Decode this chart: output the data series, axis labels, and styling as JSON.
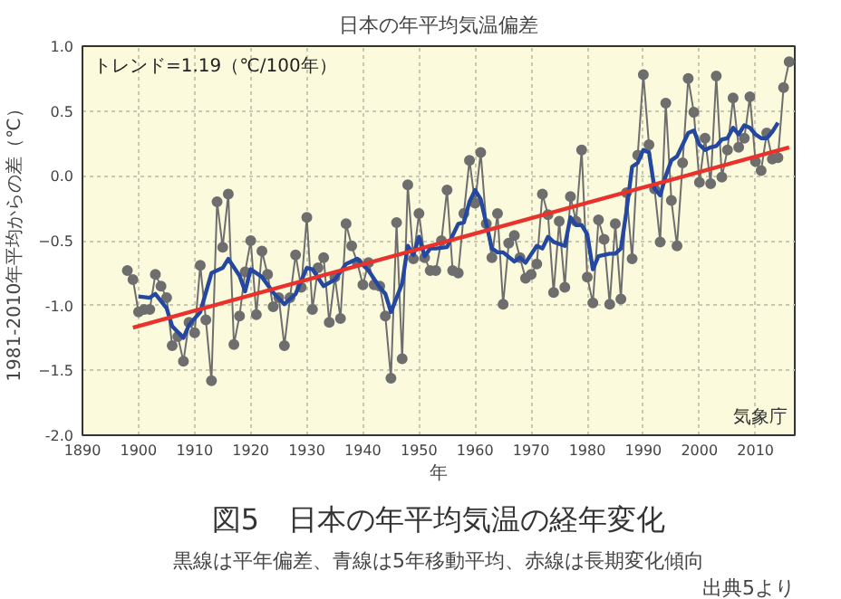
{
  "chart_data": {
    "type": "line",
    "title": "日本の年平均気温偏差",
    "xlabel": "年",
    "ylabel": "1981-2010年平均からの差（℃）",
    "xlim": [
      1890,
      2017
    ],
    "xticks": [
      1890,
      1900,
      1910,
      1920,
      1930,
      1940,
      1950,
      1960,
      1970,
      1980,
      1990,
      2000,
      2010
    ],
    "ylim": [
      -2,
      1
    ],
    "yticks": [
      {
        "value": -2,
        "label": "-2.0"
      },
      -1.5,
      {
        "value": -1,
        "label": "-1.0"
      },
      -0.5,
      {
        "value": 0,
        "label": "0.0"
      },
      0.5,
      {
        "value": 1,
        "label": "1.0"
      }
    ],
    "grid": true,
    "annotations": [
      "トレンド=1.19（℃/100年）",
      "気象庁",
      "図5　日本の年平均気温の経年変化",
      "黒線は平年偏差、青線は5年移動平均、赤線は長期変化傾向",
      "出典5より"
    ],
    "series": [
      {
        "color": "#6e6e6e",
        "marker": "circle",
        "x": [
          1898,
          1899,
          1900,
          1901,
          1902,
          1903,
          1904,
          1905,
          1906,
          1907,
          1908,
          1909,
          1910,
          1911,
          1912,
          1913,
          1914,
          1915,
          1916,
          1917,
          1918,
          1919,
          1920,
          1921,
          1922,
          1923,
          1924,
          1925,
          1926,
          1927,
          1928,
          1929,
          1930,
          1931,
          1932,
          1933,
          1934,
          1935,
          1936,
          1937,
          1938,
          1939,
          1940,
          1941,
          1942,
          1943,
          1944,
          1945,
          1946,
          1947,
          1948,
          1949,
          1950,
          1951,
          1952,
          1953,
          1954,
          1955,
          1956,
          1957,
          1958,
          1959,
          1960,
          1961,
          1962,
          1963,
          1964,
          1965,
          1966,
          1967,
          1968,
          1969,
          1970,
          1971,
          1972,
          1973,
          1974,
          1975,
          1976,
          1977,
          1978,
          1979,
          1980,
          1981,
          1982,
          1983,
          1984,
          1985,
          1986,
          1987,
          1988,
          1989,
          1990,
          1991,
          1992,
          1993,
          1994,
          1995,
          1996,
          1997,
          1998,
          1999,
          2000,
          2001,
          2002,
          2003,
          2004,
          2005,
          2006,
          2007,
          2008,
          2009,
          2010,
          2011,
          2012,
          2013,
          2014,
          2015,
          2016
        ],
        "values": [
          -0.73,
          -0.8,
          -1.05,
          -1.03,
          -1.03,
          -0.76,
          -0.85,
          -0.94,
          -1.31,
          -1.24,
          -1.43,
          -1.13,
          -1.21,
          -0.69,
          -1.11,
          -1.58,
          -0.2,
          -0.55,
          -0.14,
          -1.3,
          -1.08,
          -0.74,
          -0.5,
          -1.07,
          -0.58,
          -0.76,
          -1.01,
          -0.94,
          -1.31,
          -0.94,
          -0.61,
          -0.86,
          -0.32,
          -1.03,
          -0.71,
          -0.63,
          -1.13,
          -0.78,
          -1.1,
          -0.37,
          -0.54,
          -0.67,
          -0.84,
          -0.67,
          -0.84,
          -0.85,
          -1.08,
          -1.56,
          -0.36,
          -1.41,
          -0.07,
          -0.64,
          -0.29,
          -0.63,
          -0.73,
          -0.73,
          -0.5,
          -0.11,
          -0.73,
          -0.75,
          -0.29,
          0.12,
          -0.21,
          0.18,
          -0.37,
          -0.63,
          -0.29,
          -0.99,
          -0.52,
          -0.46,
          -0.63,
          -0.79,
          -0.76,
          -0.68,
          -0.14,
          -0.3,
          -0.9,
          -0.35,
          -0.86,
          -0.16,
          -0.35,
          0.2,
          -0.78,
          -0.98,
          -0.34,
          -0.49,
          -0.99,
          -0.37,
          -0.95,
          -0.13,
          -0.64,
          0.16,
          0.78,
          0.24,
          -0.1,
          -0.51,
          0.56,
          -0.19,
          -0.54,
          0.1,
          0.75,
          0.49,
          -0.05,
          0.29,
          -0.06,
          0.77,
          -0.01,
          0.2,
          0.6,
          0.22,
          0.29,
          0.61,
          0.11,
          0.04,
          0.33,
          0.13,
          0.14,
          0.68,
          0.88
        ]
      },
      {
        "color": "#2447a0",
        "marker": "none",
        "x": [
          1900,
          1902,
          1903,
          1905,
          1906,
          1908,
          1909,
          1911,
          1913,
          1915,
          1916,
          1918,
          1919,
          1920,
          1922,
          1924,
          1926,
          1928,
          1930,
          1931,
          1933,
          1935,
          1937,
          1939,
          1941,
          1943,
          1944,
          1945,
          1947,
          1948,
          1949,
          1950,
          1951,
          1952,
          1953,
          1955,
          1957,
          1958,
          1959,
          1960,
          1961,
          1962,
          1963,
          1964,
          1965,
          1967,
          1968,
          1969,
          1971,
          1972,
          1973,
          1974,
          1976,
          1977,
          1978,
          1979,
          1980,
          1981,
          1982,
          1984,
          1985,
          1986,
          1987,
          1988,
          1989,
          1990,
          1991,
          1992,
          1993,
          1994,
          1995,
          1996,
          1997,
          1998,
          1999,
          2000,
          2001,
          2002,
          2003,
          2004,
          2005,
          2006,
          2007,
          2008,
          2009,
          2010,
          2011,
          2012,
          2013,
          2014
        ],
        "values": [
          -0.93,
          -0.94,
          -0.91,
          -1.02,
          -1.16,
          -1.25,
          -1.15,
          -1.05,
          -0.75,
          -0.71,
          -0.64,
          -0.77,
          -0.89,
          -0.72,
          -0.78,
          -0.9,
          -0.99,
          -0.91,
          -0.71,
          -0.72,
          -0.85,
          -0.8,
          -0.68,
          -0.64,
          -0.73,
          -0.86,
          -0.91,
          -1.05,
          -0.83,
          -0.54,
          -0.61,
          -0.47,
          -0.62,
          -0.56,
          -0.56,
          -0.55,
          -0.37,
          -0.36,
          -0.2,
          -0.11,
          -0.18,
          -0.37,
          -0.56,
          -0.59,
          -0.59,
          -0.66,
          -0.63,
          -0.67,
          -0.54,
          -0.56,
          -0.47,
          -0.51,
          -0.54,
          -0.32,
          -0.38,
          -0.38,
          -0.45,
          -0.72,
          -0.62,
          -0.6,
          -0.6,
          -0.56,
          -0.27,
          0.07,
          0.1,
          0.2,
          0.18,
          -0.1,
          -0.15,
          0.0,
          0.12,
          0.15,
          0.24,
          0.33,
          0.35,
          0.24,
          0.2,
          0.22,
          0.23,
          0.28,
          0.29,
          0.37,
          0.32,
          0.39,
          0.37,
          0.32,
          0.29,
          0.29,
          0.34,
          0.41
        ]
      },
      {
        "color": "#e8322b",
        "marker": "none",
        "x": [
          1899,
          2016
        ],
        "values": [
          -1.17,
          0.22
        ]
      }
    ]
  }
}
